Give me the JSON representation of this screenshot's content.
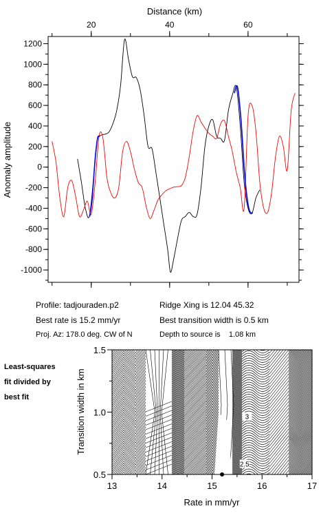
{
  "chart_data": [
    {
      "type": "line",
      "xlabel": "Distance (km)",
      "ylabel": "Anomaly amplitude",
      "x_ticks": [
        20,
        40,
        60
      ],
      "xlim": [
        9,
        73
      ],
      "y_ticks": [
        -1000,
        -800,
        -600,
        -400,
        -200,
        0,
        200,
        400,
        600,
        800,
        1000,
        1200
      ],
      "ylim": [
        -1120,
        1270
      ],
      "grid": false,
      "series": [
        {
          "color": "#000000",
          "x": [
            16.5,
            17.5,
            18.5,
            19.5,
            20.5,
            21.5,
            22.5,
            23.5,
            24.5,
            25.5,
            26.5,
            27.5,
            28.5,
            29.5,
            30.5,
            31.5,
            32.5,
            33.5,
            34.5,
            35.5,
            36.5,
            37.5,
            38.5,
            39.5,
            40.2,
            41,
            42,
            43,
            44,
            45,
            46,
            47,
            48,
            49,
            50,
            51,
            52,
            53,
            54,
            55,
            56,
            57,
            58,
            59,
            60,
            61,
            62,
            63
          ],
          "y": [
            80,
            -150,
            -400,
            -480,
            -150,
            250,
            310,
            320,
            340,
            420,
            550,
            800,
            1240,
            1050,
            880,
            870,
            750,
            500,
            200,
            180,
            -50,
            -300,
            -550,
            -800,
            -1020,
            -900,
            -700,
            -520,
            -480,
            -440,
            -480,
            -460,
            -200,
            200,
            400,
            460,
            300,
            280,
            260,
            550,
            700,
            780,
            400,
            -150,
            -400,
            -450,
            -300,
            -220
          ]
        },
        {
          "color": "#ff0000",
          "x": [
            10,
            11,
            12,
            13,
            14,
            15,
            16,
            17,
            18,
            19,
            20,
            21,
            22,
            23,
            24,
            25,
            26,
            27,
            28,
            29,
            30,
            31,
            32,
            33,
            34,
            35,
            36,
            37,
            38,
            39,
            40,
            41,
            42,
            43,
            44,
            45,
            46,
            47,
            48,
            49,
            50,
            51,
            52,
            53,
            54,
            55,
            56,
            57,
            58,
            59,
            60,
            61,
            62,
            63,
            64,
            65,
            66,
            67,
            68,
            69,
            70,
            71,
            72
          ],
          "y": [
            250,
            50,
            -300,
            -480,
            -200,
            -130,
            -280,
            -480,
            -420,
            -330,
            -460,
            -150,
            300,
            280,
            -100,
            -250,
            -300,
            -200,
            150,
            250,
            150,
            -20,
            -150,
            -200,
            -380,
            -500,
            -420,
            -320,
            -270,
            -230,
            -210,
            -195,
            -190,
            -180,
            -100,
            100,
            350,
            500,
            440,
            380,
            330,
            300,
            280,
            420,
            450,
            300,
            150,
            -50,
            -200,
            -400,
            500,
            600,
            350,
            -150,
            -400,
            -440,
            -250,
            100,
            300,
            200,
            -30,
            550,
            720
          ]
        },
        {
          "color": "#0000ff",
          "x": [
            19.6,
            20.2,
            21,
            21.6,
            22.2
          ],
          "y": [
            -480,
            -320,
            80,
            280,
            300
          ]
        },
        {
          "color": "#0000ff",
          "x": [
            56.5,
            57.3,
            58.2,
            59.2,
            60.2,
            61.2
          ],
          "y": [
            720,
            780,
            460,
            -100,
            -400,
            -450
          ]
        }
      ]
    },
    {
      "type": "heatmap",
      "xlabel": "Rate in mm/yr",
      "ylabel": "Transition width in km",
      "x_ticks": [
        13,
        14,
        15,
        16,
        17
      ],
      "xlim": [
        13,
        17
      ],
      "y_ticks": [
        0.5,
        1.0,
        1.5
      ],
      "ylim": [
        0.5,
        1.5
      ],
      "contour_labels": [
        {
          "text": "3",
          "x": 15.7,
          "y": 0.96
        },
        {
          "text": "2.5",
          "x": 15.65,
          "y": 0.58
        }
      ],
      "best_fit": {
        "x": 15.2,
        "y": 0.5
      }
    }
  ],
  "info": {
    "profile": "Profile: tadjouraden.p2",
    "best_rate": "Best rate is 15.2 mm/yr",
    "proj_az": "Proj. Az: 178.0 deg. CW of N",
    "ridge_xing": "Ridge Xing is 12.04 45.32",
    "best_width": "Best transition width is 0.5 km",
    "depth": "Depth to source is    1.08 km"
  },
  "side_note": [
    "Least-squares",
    "fit divided by",
    "best fit"
  ]
}
